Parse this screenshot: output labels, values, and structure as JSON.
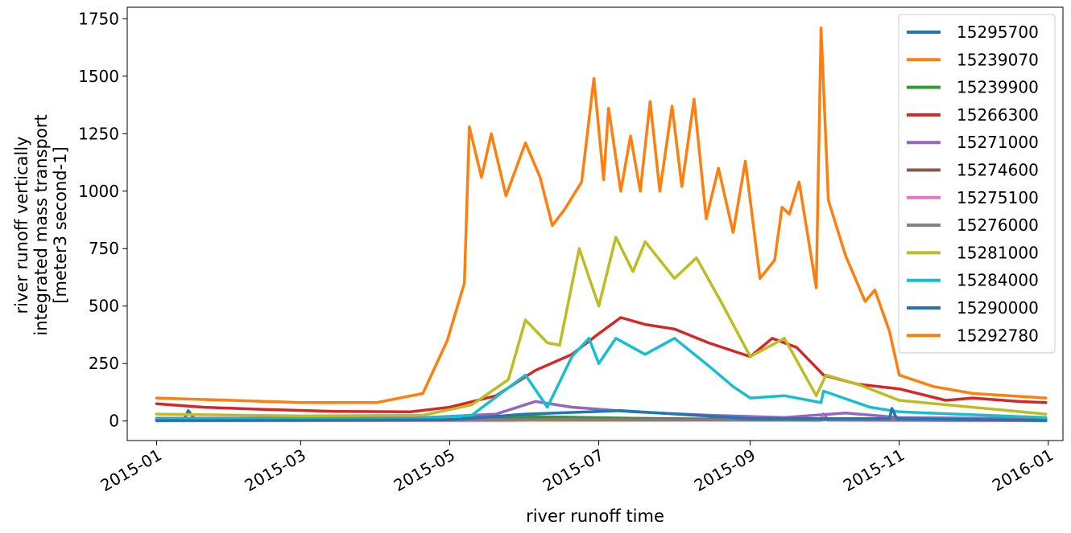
{
  "chart_data": {
    "type": "line",
    "xlabel": "river runoff time",
    "ylabel_lines": [
      "river runoff vertically",
      "integrated mass transport",
      "[meter3 second-1]"
    ],
    "x_ticks": [
      "2015-01",
      "2015-03",
      "2015-05",
      "2015-07",
      "2015-09",
      "2015-11",
      "2016-01"
    ],
    "y_ticks": [
      "0",
      "250",
      "500",
      "750",
      "1000",
      "1250",
      "1500",
      "1750"
    ],
    "xlim": [
      "2014-12-20",
      "2016-01-07"
    ],
    "ylim": [
      -85,
      1800
    ],
    "legend_position": "upper right",
    "series": [
      {
        "name": "15295700",
        "color": "#1f77b4",
        "x": [
          "2015-01-01",
          "2015-01-12",
          "2015-01-14",
          "2015-01-17",
          "2015-03-01",
          "2015-06-01",
          "2015-09-30",
          "2015-10-01",
          "2015-10-03",
          "2015-12-31"
        ],
        "values": [
          2,
          2,
          45,
          2,
          2,
          3,
          3,
          30,
          3,
          2
        ]
      },
      {
        "name": "15239070",
        "color": "#ff7f0e",
        "x": [
          "2015-01-01",
          "2015-03-01",
          "2015-06-01",
          "2015-09-30",
          "2015-12-31"
        ],
        "values": [
          1,
          1,
          3,
          5,
          1
        ]
      },
      {
        "name": "15239900",
        "color": "#2ca02c",
        "x": [
          "2015-01-01",
          "2015-05-01",
          "2015-05-10",
          "2015-06-01",
          "2015-07-15",
          "2015-09-15",
          "2015-12-31"
        ],
        "values": [
          3,
          3,
          15,
          20,
          12,
          6,
          3
        ]
      },
      {
        "name": "15266300",
        "color": "#d62728",
        "x": [
          "2015-01-01",
          "2015-01-20",
          "2015-02-15",
          "2015-03-15",
          "2015-04-15",
          "2015-05-01",
          "2015-05-20",
          "2015-06-05",
          "2015-06-20",
          "2015-07-01",
          "2015-07-10",
          "2015-07-20",
          "2015-08-01",
          "2015-08-15",
          "2015-09-01",
          "2015-09-10",
          "2015-09-20",
          "2015-10-01",
          "2015-10-15",
          "2015-11-01",
          "2015-11-20",
          "2015-12-01",
          "2015-12-20",
          "2015-12-31"
        ],
        "values": [
          75,
          60,
          50,
          42,
          40,
          60,
          110,
          220,
          290,
          380,
          450,
          420,
          400,
          340,
          280,
          360,
          320,
          200,
          160,
          140,
          90,
          100,
          85,
          80
        ]
      },
      {
        "name": "15271000",
        "color": "#9467bd",
        "x": [
          "2015-01-01",
          "2015-04-15",
          "2015-05-20",
          "2015-06-05",
          "2015-06-20",
          "2015-07-15",
          "2015-08-15",
          "2015-09-15",
          "2015-10-10",
          "2015-11-01",
          "2015-12-31"
        ],
        "values": [
          12,
          12,
          30,
          85,
          60,
          40,
          25,
          15,
          35,
          15,
          10
        ]
      },
      {
        "name": "15274600",
        "color": "#8c564b",
        "x": [
          "2015-01-01",
          "2015-06-01",
          "2015-12-31"
        ],
        "values": [
          5,
          8,
          5
        ]
      },
      {
        "name": "15275100",
        "color": "#e377c2",
        "x": [
          "2015-01-01",
          "2015-05-15",
          "2015-06-20",
          "2015-08-15",
          "2015-09-30",
          "2015-10-01",
          "2015-10-03",
          "2015-12-31"
        ],
        "values": [
          1,
          3,
          6,
          4,
          5,
          20,
          3,
          1
        ]
      },
      {
        "name": "15276000",
        "color": "#7f7f7f",
        "x": [
          "2015-01-01",
          "2015-06-01",
          "2015-12-31"
        ],
        "values": [
          4,
          6,
          4
        ]
      },
      {
        "name": "15281000",
        "color": "#bcbd22",
        "x": [
          "2015-01-01",
          "2015-03-01",
          "2015-04-20",
          "2015-05-10",
          "2015-05-25",
          "2015-06-01",
          "2015-06-10",
          "2015-06-15",
          "2015-06-23",
          "2015-07-01",
          "2015-07-08",
          "2015-07-15",
          "2015-07-20",
          "2015-08-01",
          "2015-08-10",
          "2015-08-20",
          "2015-09-01",
          "2015-09-15",
          "2015-09-28",
          "2015-10-02",
          "2015-10-15",
          "2015-11-01",
          "2015-12-31"
        ],
        "values": [
          30,
          22,
          25,
          70,
          180,
          440,
          340,
          330,
          750,
          500,
          800,
          650,
          780,
          620,
          710,
          520,
          280,
          360,
          110,
          200,
          160,
          90,
          30
        ]
      },
      {
        "name": "15284000",
        "color": "#17becf",
        "x": [
          "2015-01-01",
          "2015-04-15",
          "2015-05-10",
          "2015-06-01",
          "2015-06-10",
          "2015-06-20",
          "2015-06-27",
          "2015-07-01",
          "2015-07-08",
          "2015-07-20",
          "2015-08-01",
          "2015-08-15",
          "2015-08-25",
          "2015-09-01",
          "2015-09-15",
          "2015-09-30",
          "2015-10-01",
          "2015-10-20",
          "2015-11-01",
          "2015-12-31"
        ],
        "values": [
          8,
          8,
          25,
          200,
          60,
          280,
          360,
          250,
          360,
          290,
          360,
          240,
          150,
          100,
          110,
          80,
          130,
          60,
          40,
          15
        ]
      },
      {
        "name": "15290000",
        "color": "#1f77b4",
        "x": [
          "2015-01-01",
          "2015-05-01",
          "2015-06-01",
          "2015-07-10",
          "2015-09-01",
          "2015-10-28",
          "2015-10-29",
          "2015-10-31",
          "2015-12-31"
        ],
        "values": [
          2,
          5,
          30,
          45,
          10,
          10,
          55,
          10,
          2
        ]
      },
      {
        "name": "15292780",
        "color": "#ff7f0e",
        "x": [
          "2015-01-01",
          "2015-02-01",
          "2015-03-01",
          "2015-04-01",
          "2015-04-20",
          "2015-04-30",
          "2015-05-07",
          "2015-05-09",
          "2015-05-14",
          "2015-05-18",
          "2015-05-24",
          "2015-06-01",
          "2015-06-07",
          "2015-06-12",
          "2015-06-17",
          "2015-06-24",
          "2015-06-29",
          "2015-07-03",
          "2015-07-05",
          "2015-07-10",
          "2015-07-14",
          "2015-07-18",
          "2015-07-22",
          "2015-07-26",
          "2015-07-31",
          "2015-08-04",
          "2015-08-09",
          "2015-08-14",
          "2015-08-19",
          "2015-08-25",
          "2015-08-30",
          "2015-09-05",
          "2015-09-11",
          "2015-09-14",
          "2015-09-17",
          "2015-09-21",
          "2015-09-28",
          "2015-09-30",
          "2015-10-03",
          "2015-10-10",
          "2015-10-18",
          "2015-10-22",
          "2015-10-28",
          "2015-11-01",
          "2015-11-15",
          "2015-12-01",
          "2015-12-31"
        ],
        "values": [
          100,
          90,
          80,
          80,
          120,
          350,
          600,
          1280,
          1060,
          1250,
          980,
          1210,
          1060,
          850,
          920,
          1040,
          1490,
          1050,
          1360,
          1000,
          1240,
          1000,
          1390,
          1000,
          1370,
          1020,
          1400,
          880,
          1100,
          820,
          1130,
          620,
          700,
          930,
          900,
          1040,
          580,
          1710,
          960,
          720,
          520,
          570,
          390,
          200,
          150,
          120,
          100
        ]
      }
    ]
  }
}
